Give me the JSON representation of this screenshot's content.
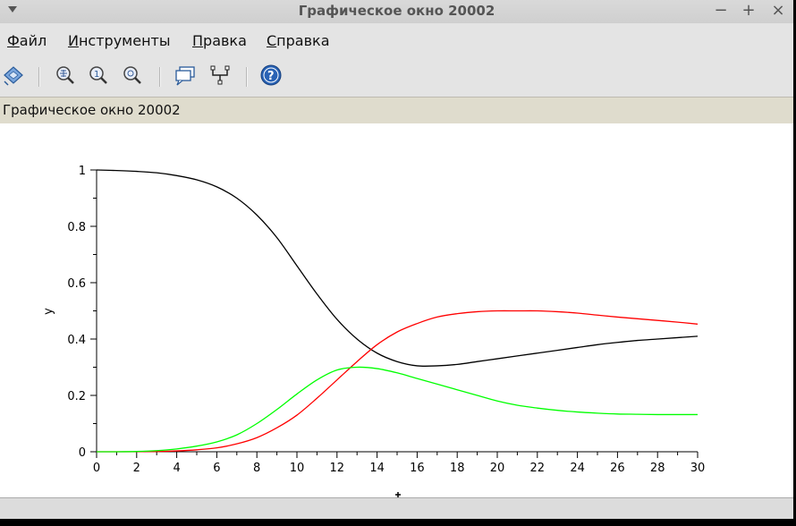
{
  "window": {
    "title": "Графическое окно 20002",
    "controls": {
      "minimize": "−",
      "maximize": "+",
      "close": "×"
    }
  },
  "menu": [
    {
      "mnemonic": "Ф",
      "rest": "айл"
    },
    {
      "mnemonic": "И",
      "rest": "нструменты"
    },
    {
      "mnemonic": "П",
      "rest": "равка"
    },
    {
      "mnemonic": "С",
      "rest": "правка"
    }
  ],
  "toolbar": {
    "icons": [
      "rotate-icon",
      "zoom-grid-icon",
      "zoom-original-icon",
      "zoom-out-icon",
      "datatip-icon",
      "edit-data-icon",
      "help-icon"
    ]
  },
  "figure_label": "Графическое окно 20002",
  "chart_data": {
    "type": "line",
    "title": "",
    "xlabel": "",
    "ylabel": "y",
    "xlim": [
      0,
      30
    ],
    "ylim": [
      0,
      1
    ],
    "xticks": [
      "0",
      "2",
      "4",
      "6",
      "8",
      "10",
      "12",
      "14",
      "16",
      "18",
      "20",
      "22",
      "24",
      "26",
      "28",
      "30"
    ],
    "yticks": [
      "0",
      "0.2",
      "0.4",
      "0.6",
      "0.8",
      "1"
    ],
    "grid": false,
    "legend": "none",
    "x": [
      0,
      1,
      2,
      3,
      4,
      5,
      6,
      7,
      8,
      9,
      10,
      11,
      12,
      13,
      14,
      15,
      16,
      17,
      18,
      19,
      20,
      21,
      22,
      23,
      24,
      25,
      26,
      27,
      28,
      29,
      30
    ],
    "series": [
      {
        "color": "#000000",
        "values": [
          1.0,
          0.998,
          0.995,
          0.99,
          0.98,
          0.965,
          0.94,
          0.9,
          0.84,
          0.76,
          0.66,
          0.56,
          0.47,
          0.4,
          0.35,
          0.32,
          0.305,
          0.305,
          0.31,
          0.32,
          0.33,
          0.34,
          0.35,
          0.36,
          0.37,
          0.38,
          0.388,
          0.395,
          0.4,
          0.405,
          0.41
        ]
      },
      {
        "color": "#ff0000",
        "values": [
          0.0,
          0.0,
          0.0,
          0.001,
          0.003,
          0.007,
          0.014,
          0.028,
          0.05,
          0.085,
          0.13,
          0.19,
          0.255,
          0.32,
          0.38,
          0.425,
          0.455,
          0.478,
          0.49,
          0.497,
          0.5,
          0.5,
          0.5,
          0.497,
          0.492,
          0.485,
          0.478,
          0.472,
          0.466,
          0.46,
          0.453
        ]
      },
      {
        "color": "#00ff00",
        "values": [
          0.0,
          0.0,
          0.001,
          0.004,
          0.01,
          0.02,
          0.035,
          0.06,
          0.1,
          0.15,
          0.205,
          0.255,
          0.29,
          0.3,
          0.295,
          0.28,
          0.26,
          0.24,
          0.22,
          0.2,
          0.18,
          0.165,
          0.155,
          0.147,
          0.141,
          0.137,
          0.134,
          0.133,
          0.132,
          0.132,
          0.132
        ]
      }
    ]
  }
}
